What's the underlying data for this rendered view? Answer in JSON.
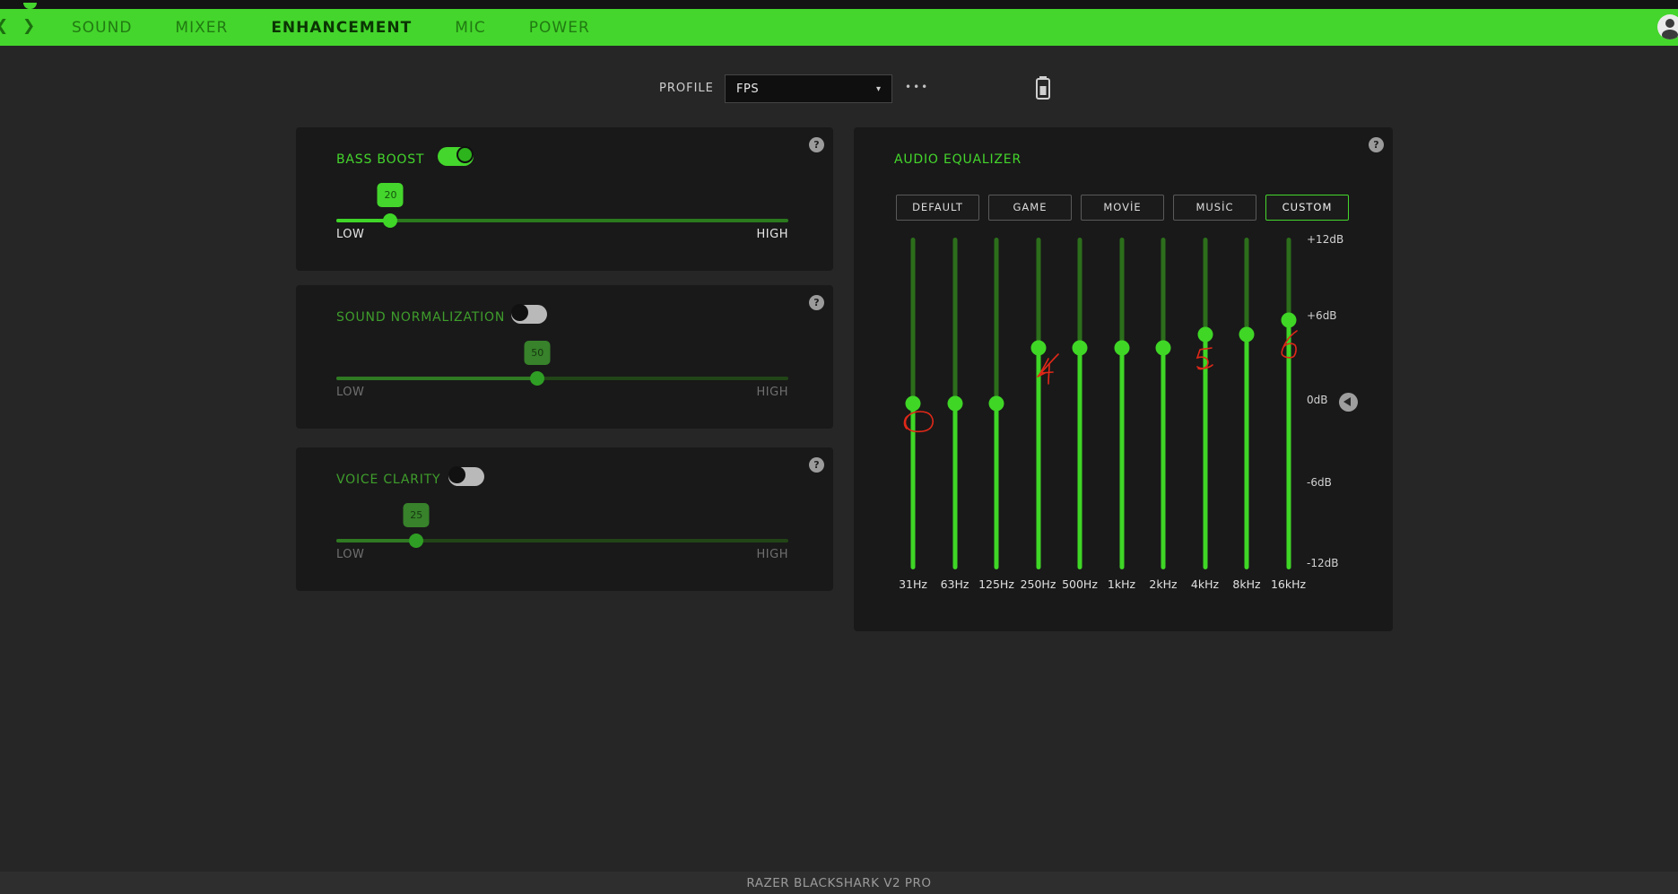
{
  "nav": {
    "back": "❮",
    "forward": "❯",
    "tabs": [
      {
        "label": "SOUND",
        "active": false
      },
      {
        "label": "MIXER",
        "active": false
      },
      {
        "label": "ENHANCEMENT",
        "active": true
      },
      {
        "label": "MIC",
        "active": false
      },
      {
        "label": "POWER",
        "active": false
      }
    ]
  },
  "profile": {
    "label": "PROFILE",
    "value": "FPS",
    "caret": "▾",
    "more": "•••"
  },
  "help_glyph": "?",
  "panels": {
    "bass_boost": {
      "title": "BASS BOOST",
      "enabled": true,
      "value": "20",
      "pos_pct": 12,
      "low": "LOW",
      "high": "HIGH"
    },
    "sound_normalization": {
      "title": "SOUND NORMALIZATION",
      "enabled": false,
      "value": "50",
      "pos_pct": 44.5,
      "low": "LOW",
      "high": "HIGH"
    },
    "voice_clarity": {
      "title": "VOICE CLARITY",
      "enabled": false,
      "value": "25",
      "pos_pct": 17.7,
      "low": "LOW",
      "high": "HIGH"
    }
  },
  "equalizer": {
    "title": "AUDIO EQUALIZER",
    "presets": [
      {
        "label": "DEFAULT",
        "active": false
      },
      {
        "label": "GAME",
        "active": false
      },
      {
        "label": "MOVİE",
        "active": false
      },
      {
        "label": "MUSİC",
        "active": false
      },
      {
        "label": "CUSTOM",
        "active": true
      }
    ],
    "scale": [
      "+12dB",
      "+6dB",
      "0dB",
      "-6dB",
      "-12dB"
    ],
    "bands": [
      {
        "freq": "31Hz",
        "db": 0
      },
      {
        "freq": "63Hz",
        "db": 0
      },
      {
        "freq": "125Hz",
        "db": 0
      },
      {
        "freq": "250Hz",
        "db": 4
      },
      {
        "freq": "500Hz",
        "db": 4
      },
      {
        "freq": "1kHz",
        "db": 4
      },
      {
        "freq": "2kHz",
        "db": 4
      },
      {
        "freq": "4kHz",
        "db": 5
      },
      {
        "freq": "8kHz",
        "db": 5
      },
      {
        "freq": "16kHz",
        "db": 6
      }
    ]
  },
  "annotations": [
    {
      "target": "31Hz",
      "mark": "circle-scribble"
    },
    {
      "target": "250Hz",
      "mark": "4"
    },
    {
      "target": "4kHz",
      "mark": "5"
    },
    {
      "target": "16kHz",
      "mark": "6"
    }
  ],
  "footer": {
    "device_name": "RAZER BLACKSHARK V2 PRO"
  },
  "colors": {
    "accent": "#44d62c",
    "annotation": "#e02818"
  }
}
